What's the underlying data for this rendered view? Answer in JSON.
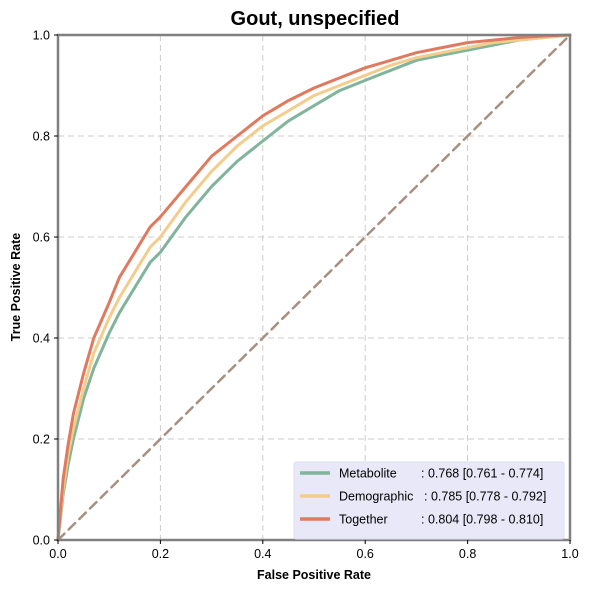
{
  "chart_data": {
    "type": "line",
    "title": "Gout, unspecified",
    "xlabel": "False Positive Rate",
    "ylabel": "True Positive Rate",
    "xlim": [
      0,
      1
    ],
    "ylim": [
      0,
      1
    ],
    "x_ticks": [
      "0.0",
      "0.2",
      "0.4",
      "0.6",
      "0.8",
      "1.0"
    ],
    "y_ticks": [
      "0.0",
      "0.2",
      "0.4",
      "0.6",
      "0.8",
      "1.0"
    ],
    "grid": true,
    "legend_position": "lower-right",
    "series": [
      {
        "name": "Metabolite",
        "label_suffix": ": 0.768 [0.761 - 0.774]",
        "color": "#80b59b",
        "x": [
          0,
          0.01,
          0.02,
          0.03,
          0.05,
          0.07,
          0.1,
          0.12,
          0.15,
          0.18,
          0.2,
          0.25,
          0.3,
          0.35,
          0.4,
          0.45,
          0.5,
          0.55,
          0.6,
          0.65,
          0.7,
          0.75,
          0.8,
          0.85,
          0.9,
          0.95,
          1.0
        ],
        "y": [
          0,
          0.09,
          0.15,
          0.2,
          0.28,
          0.34,
          0.41,
          0.45,
          0.5,
          0.55,
          0.57,
          0.64,
          0.7,
          0.75,
          0.79,
          0.83,
          0.86,
          0.89,
          0.91,
          0.93,
          0.95,
          0.96,
          0.97,
          0.98,
          0.99,
          0.995,
          1.0
        ]
      },
      {
        "name": "Demographic",
        "label_suffix": ": 0.785 [0.778 - 0.792]",
        "color": "#f3cd8b",
        "x": [
          0,
          0.01,
          0.02,
          0.03,
          0.05,
          0.07,
          0.1,
          0.12,
          0.15,
          0.18,
          0.2,
          0.25,
          0.3,
          0.35,
          0.4,
          0.45,
          0.5,
          0.55,
          0.6,
          0.65,
          0.7,
          0.75,
          0.8,
          0.85,
          0.9,
          0.95,
          1.0
        ],
        "y": [
          0,
          0.1,
          0.17,
          0.22,
          0.3,
          0.37,
          0.44,
          0.48,
          0.53,
          0.58,
          0.6,
          0.67,
          0.73,
          0.78,
          0.82,
          0.85,
          0.88,
          0.9,
          0.92,
          0.94,
          0.955,
          0.965,
          0.975,
          0.985,
          0.99,
          0.995,
          1.0
        ]
      },
      {
        "name": "Together",
        "label_suffix": ": 0.804 [0.798 - 0.810]",
        "color": "#e07a5f",
        "x": [
          0,
          0.01,
          0.02,
          0.03,
          0.05,
          0.07,
          0.1,
          0.12,
          0.15,
          0.18,
          0.2,
          0.25,
          0.3,
          0.35,
          0.4,
          0.45,
          0.5,
          0.55,
          0.6,
          0.65,
          0.7,
          0.75,
          0.8,
          0.85,
          0.9,
          0.95,
          1.0
        ],
        "y": [
          0,
          0.12,
          0.19,
          0.25,
          0.33,
          0.4,
          0.47,
          0.52,
          0.57,
          0.62,
          0.64,
          0.7,
          0.76,
          0.8,
          0.84,
          0.87,
          0.895,
          0.915,
          0.935,
          0.95,
          0.965,
          0.975,
          0.985,
          0.99,
          0.995,
          0.998,
          1.0
        ]
      },
      {
        "name": "",
        "color": "#a89080",
        "dashed": true,
        "x": [
          0,
          1
        ],
        "y": [
          0,
          1
        ]
      }
    ]
  }
}
